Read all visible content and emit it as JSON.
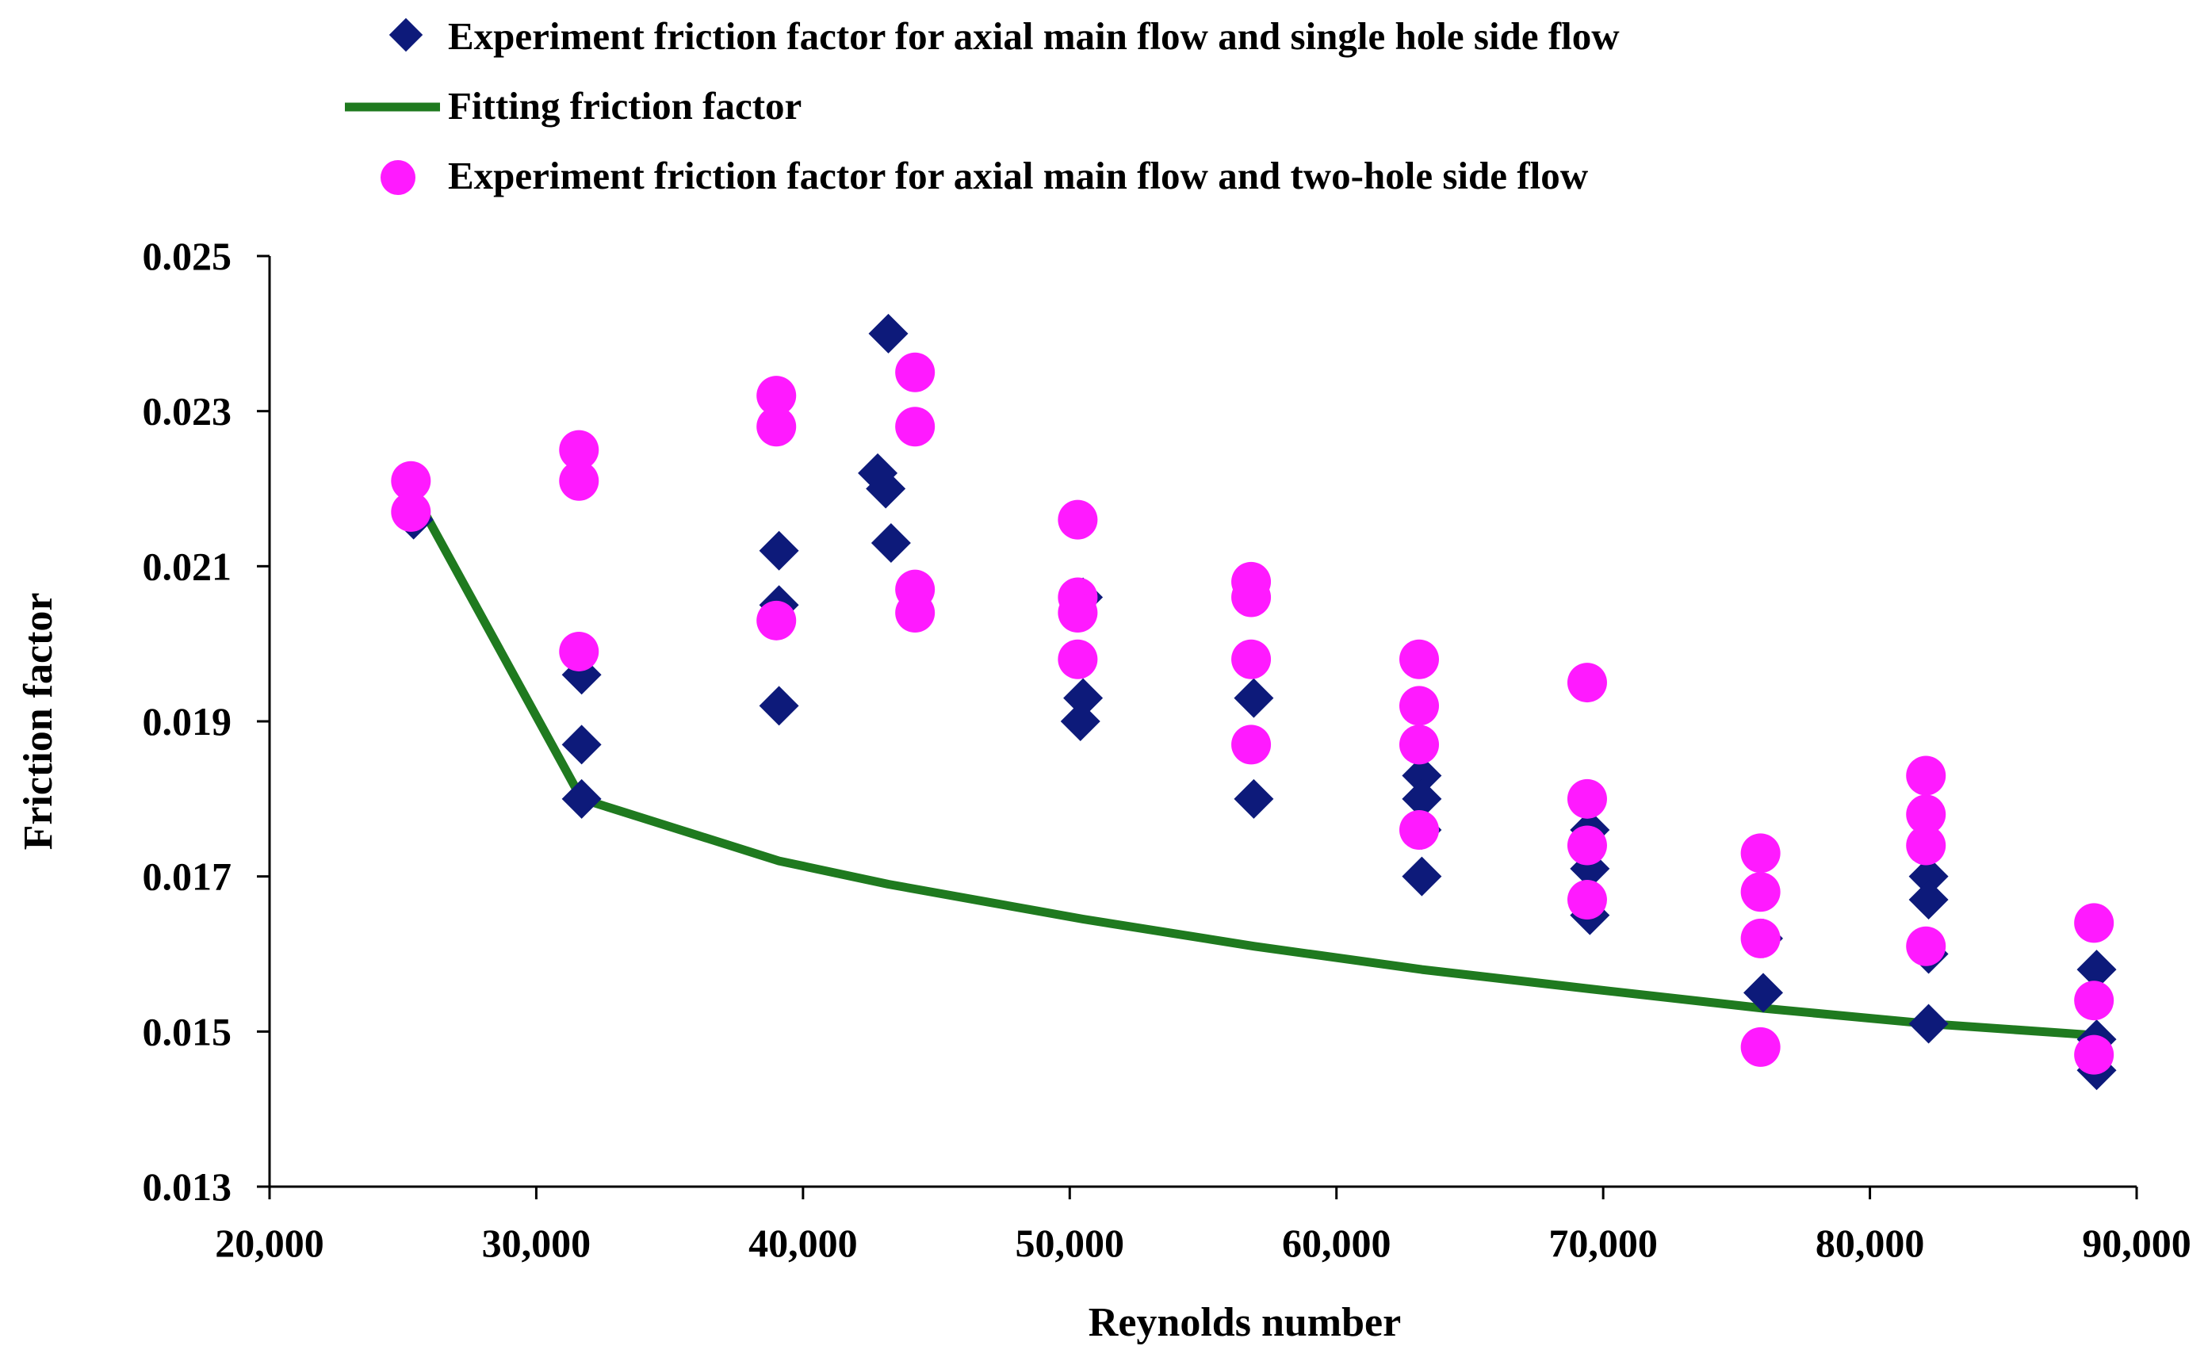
{
  "chart_data": {
    "type": "scatter",
    "title": "",
    "xlabel": "Reynolds number",
    "ylabel": "Friction  factor",
    "xlim": [
      20000,
      90000
    ],
    "ylim": [
      0.013,
      0.025
    ],
    "grid": false,
    "legend_position": "top",
    "x_ticks": [
      {
        "value": 20000,
        "label": "20,000"
      },
      {
        "value": 30000,
        "label": "30,000"
      },
      {
        "value": 40000,
        "label": "40,000"
      },
      {
        "value": 50000,
        "label": "50,000"
      },
      {
        "value": 60000,
        "label": "60,000"
      },
      {
        "value": 70000,
        "label": "70,000"
      },
      {
        "value": 80000,
        "label": "80,000"
      },
      {
        "value": 90000,
        "label": "90,000"
      }
    ],
    "y_ticks": [
      {
        "value": 0.013,
        "label": "0.013"
      },
      {
        "value": 0.015,
        "label": "0.015"
      },
      {
        "value": 0.017,
        "label": "0.017"
      },
      {
        "value": 0.019,
        "label": "0.019"
      },
      {
        "value": 0.021,
        "label": "0.021"
      },
      {
        "value": 0.023,
        "label": "0.023"
      },
      {
        "value": 0.025,
        "label": "0.025"
      }
    ],
    "series": [
      {
        "name": "Experiment friction factor for axial main flow and single hole side flow",
        "marker": "diamond",
        "color": "#0d1a7a",
        "points": [
          [
            25400,
            0.0216
          ],
          [
            31700,
            0.0196
          ],
          [
            31700,
            0.0187
          ],
          [
            31700,
            0.018
          ],
          [
            39100,
            0.0212
          ],
          [
            39100,
            0.0205
          ],
          [
            39100,
            0.0192
          ],
          [
            43200,
            0.024
          ],
          [
            42800,
            0.0222
          ],
          [
            43100,
            0.022
          ],
          [
            43300,
            0.0213
          ],
          [
            50500,
            0.0206
          ],
          [
            50500,
            0.0193
          ],
          [
            50400,
            0.019
          ],
          [
            56900,
            0.0193
          ],
          [
            56900,
            0.018
          ],
          [
            63200,
            0.0183
          ],
          [
            63200,
            0.018
          ],
          [
            63200,
            0.0176
          ],
          [
            63200,
            0.017
          ],
          [
            69500,
            0.0176
          ],
          [
            69500,
            0.0171
          ],
          [
            69500,
            0.0165
          ],
          [
            76000,
            0.0162
          ],
          [
            76000,
            0.0155
          ],
          [
            82200,
            0.017
          ],
          [
            82200,
            0.0167
          ],
          [
            82200,
            0.016
          ],
          [
            82200,
            0.0151
          ],
          [
            88500,
            0.0158
          ],
          [
            88500,
            0.0149
          ],
          [
            88500,
            0.0145
          ]
        ]
      },
      {
        "name": "Fitting friction factor",
        "marker": "line",
        "color": "#1f7a1f",
        "points": [
          [
            25800,
            0.0217
          ],
          [
            31700,
            0.018
          ],
          [
            39100,
            0.0172
          ],
          [
            43200,
            0.0169
          ],
          [
            50500,
            0.01645
          ],
          [
            56900,
            0.0161
          ],
          [
            63200,
            0.0158
          ],
          [
            69500,
            0.01555
          ],
          [
            76000,
            0.0153
          ],
          [
            82200,
            0.0151
          ],
          [
            88500,
            0.01495
          ]
        ]
      },
      {
        "name": "Experiment friction factor for axial main flow and two-hole side flow",
        "marker": "circle",
        "color": "#ff1aff",
        "points": [
          [
            25300,
            0.0221
          ],
          [
            25300,
            0.0217
          ],
          [
            31600,
            0.0225
          ],
          [
            31600,
            0.0221
          ],
          [
            31600,
            0.0199
          ],
          [
            39000,
            0.0232
          ],
          [
            39000,
            0.0228
          ],
          [
            39000,
            0.0203
          ],
          [
            44200,
            0.0235
          ],
          [
            44200,
            0.0228
          ],
          [
            44200,
            0.0207
          ],
          [
            44200,
            0.0204
          ],
          [
            50300,
            0.0216
          ],
          [
            50300,
            0.0206
          ],
          [
            50300,
            0.0204
          ],
          [
            50300,
            0.0198
          ],
          [
            56800,
            0.0208
          ],
          [
            56800,
            0.0206
          ],
          [
            56800,
            0.0198
          ],
          [
            56800,
            0.0187
          ],
          [
            63100,
            0.0198
          ],
          [
            63100,
            0.0192
          ],
          [
            63100,
            0.0187
          ],
          [
            63100,
            0.0176
          ],
          [
            69400,
            0.0195
          ],
          [
            69400,
            0.018
          ],
          [
            69400,
            0.0174
          ],
          [
            69400,
            0.0167
          ],
          [
            75900,
            0.0173
          ],
          [
            75900,
            0.0168
          ],
          [
            75900,
            0.0162
          ],
          [
            75900,
            0.0148
          ],
          [
            82100,
            0.0183
          ],
          [
            82100,
            0.0178
          ],
          [
            82100,
            0.0174
          ],
          [
            82100,
            0.0161
          ],
          [
            88400,
            0.0164
          ],
          [
            88400,
            0.0154
          ],
          [
            88400,
            0.0147
          ]
        ]
      }
    ]
  }
}
